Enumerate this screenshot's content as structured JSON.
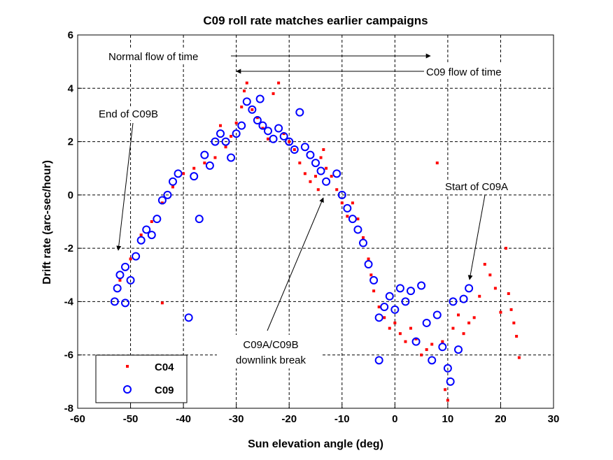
{
  "chart_data": {
    "type": "scatter",
    "title": "C09 roll rate matches earlier campaigns",
    "xlabel": "Sun elevation angle (deg)",
    "ylabel": "Drift rate (arc-sec/hour)",
    "xlim": [
      -60,
      30
    ],
    "ylim": [
      -8,
      6
    ],
    "xticks": [
      -60,
      -50,
      -40,
      -30,
      -20,
      -10,
      0,
      10,
      20,
      30
    ],
    "yticks": [
      -8,
      -6,
      -4,
      -2,
      0,
      2,
      4,
      6
    ],
    "grid": true,
    "grid_style": "dashed",
    "legend_position": "bottom-left",
    "series": [
      {
        "name": "C04",
        "marker": "red point",
        "color": "#ff0000",
        "points": [
          [
            -52,
            -3.2
          ],
          [
            -50,
            -2.4
          ],
          [
            -48,
            -1.5
          ],
          [
            -46,
            -1.0
          ],
          [
            -44,
            -0.3
          ],
          [
            -44,
            -4.05
          ],
          [
            -42,
            0.3
          ],
          [
            -40,
            0.8
          ],
          [
            -38,
            1.0
          ],
          [
            -36,
            1.2
          ],
          [
            -34,
            1.4
          ],
          [
            -33,
            2.6
          ],
          [
            -32,
            1.8
          ],
          [
            -31,
            2.2
          ],
          [
            -30,
            2.7
          ],
          [
            -29,
            3.3
          ],
          [
            -28.5,
            3.9
          ],
          [
            -28,
            4.2
          ],
          [
            -27,
            3.2
          ],
          [
            -26,
            2.9
          ],
          [
            -25,
            2.5
          ],
          [
            -24,
            2.1
          ],
          [
            -23,
            3.8
          ],
          [
            -22,
            4.2
          ],
          [
            -21,
            2.3
          ],
          [
            -20,
            2.0
          ],
          [
            -19,
            1.7
          ],
          [
            -18,
            1.2
          ],
          [
            -17,
            0.8
          ],
          [
            -16,
            0.5
          ],
          [
            -15,
            0.7
          ],
          [
            -14.5,
            0.2
          ],
          [
            -14,
            1.4
          ],
          [
            -13.5,
            1.7
          ],
          [
            -13,
            1.0
          ],
          [
            -12,
            0.7
          ],
          [
            -11,
            0.2
          ],
          [
            -10,
            -0.3
          ],
          [
            -9,
            -0.8
          ],
          [
            -8,
            -0.3
          ],
          [
            -7,
            -0.9
          ],
          [
            -6,
            -1.6
          ],
          [
            -5,
            -2.4
          ],
          [
            -4.5,
            -3.0
          ],
          [
            -4,
            -3.6
          ],
          [
            -3,
            -4.2
          ],
          [
            -2,
            -4.6
          ],
          [
            -1,
            -5.0
          ],
          [
            0,
            -4.8
          ],
          [
            1,
            -5.2
          ],
          [
            2,
            -5.5
          ],
          [
            3,
            -5.0
          ],
          [
            4,
            -5.4
          ],
          [
            5,
            -6.0
          ],
          [
            6,
            -5.8
          ],
          [
            7,
            -5.6
          ],
          [
            8,
            1.2
          ],
          [
            9,
            -5.5
          ],
          [
            9.5,
            -7.3
          ],
          [
            10,
            -7.7
          ],
          [
            11,
            -5.0
          ],
          [
            12,
            -4.5
          ],
          [
            13,
            -5.2
          ],
          [
            14,
            -4.8
          ],
          [
            15,
            -4.6
          ],
          [
            16,
            -3.8
          ],
          [
            17,
            -2.6
          ],
          [
            18,
            -3.0
          ],
          [
            19,
            -3.5
          ],
          [
            20,
            -4.4
          ],
          [
            21,
            -2.0
          ],
          [
            21.5,
            -3.7
          ],
          [
            22,
            -4.3
          ],
          [
            22.5,
            -4.8
          ],
          [
            23,
            -5.3
          ],
          [
            23.5,
            -6.1
          ]
        ]
      },
      {
        "name": "C09",
        "marker": "blue circle",
        "color": "#0000ff",
        "points": [
          [
            -53,
            -4.0
          ],
          [
            -51,
            -4.05
          ],
          [
            -52.5,
            -3.5
          ],
          [
            -52,
            -3.0
          ],
          [
            -51,
            -2.7
          ],
          [
            -50,
            -3.2
          ],
          [
            -49,
            -2.3
          ],
          [
            -48,
            -1.7
          ],
          [
            -47,
            -1.3
          ],
          [
            -46,
            -1.5
          ],
          [
            -45,
            -0.9
          ],
          [
            -44,
            -0.2
          ],
          [
            -43,
            0.0
          ],
          [
            -42,
            0.5
          ],
          [
            -41,
            0.8
          ],
          [
            -39,
            -4.6
          ],
          [
            -37,
            -0.9
          ],
          [
            -38,
            0.7
          ],
          [
            -36,
            1.5
          ],
          [
            -35,
            1.1
          ],
          [
            -34,
            2.0
          ],
          [
            -33,
            2.3
          ],
          [
            -32,
            2.0
          ],
          [
            -31,
            1.4
          ],
          [
            -30,
            2.3
          ],
          [
            -29,
            2.6
          ],
          [
            -28,
            3.5
          ],
          [
            -27,
            3.2
          ],
          [
            -26,
            2.8
          ],
          [
            -25.5,
            3.6
          ],
          [
            -25,
            2.6
          ],
          [
            -24,
            2.4
          ],
          [
            -23,
            2.1
          ],
          [
            -22,
            2.5
          ],
          [
            -21,
            2.2
          ],
          [
            -20,
            2.0
          ],
          [
            -19,
            1.7
          ],
          [
            -18,
            3.1
          ],
          [
            -17,
            1.8
          ],
          [
            -16,
            1.5
          ],
          [
            -15,
            1.2
          ],
          [
            -14,
            0.9
          ],
          [
            -13,
            0.5
          ],
          [
            -11,
            0.8
          ],
          [
            -10,
            0.0
          ],
          [
            -9,
            -0.5
          ],
          [
            -8,
            -0.9
          ],
          [
            -7,
            -1.3
          ],
          [
            -6,
            -1.8
          ],
          [
            -5,
            -2.6
          ],
          [
            -4,
            -3.2
          ],
          [
            -3,
            -4.6
          ],
          [
            -3,
            -6.2
          ],
          [
            -2,
            -4.2
          ],
          [
            -1,
            -3.8
          ],
          [
            0,
            -4.3
          ],
          [
            1,
            -3.5
          ],
          [
            2,
            -4.0
          ],
          [
            3,
            -3.6
          ],
          [
            4,
            -5.5
          ],
          [
            5,
            -3.4
          ],
          [
            6,
            -4.8
          ],
          [
            7,
            -6.2
          ],
          [
            8,
            -4.5
          ],
          [
            9,
            -5.7
          ],
          [
            10,
            -6.5
          ],
          [
            10.5,
            -7.0
          ],
          [
            11,
            -4.0
          ],
          [
            12,
            -5.8
          ],
          [
            13,
            -3.9
          ],
          [
            14,
            -3.5
          ]
        ]
      }
    ],
    "annotations": [
      {
        "text": "Normal flow of time",
        "arrow": "right"
      },
      {
        "text": "C09 flow of time",
        "arrow": "left"
      },
      {
        "text": "End of C09B",
        "points_to": [
          -52.5,
          -2.1
        ]
      },
      {
        "text": "Start of C09A",
        "points_to": [
          14,
          -3.2
        ]
      },
      {
        "text": "C09A/C09B",
        "points_to": [
          -14,
          -0.2
        ]
      },
      {
        "text": "downlink break"
      }
    ]
  }
}
